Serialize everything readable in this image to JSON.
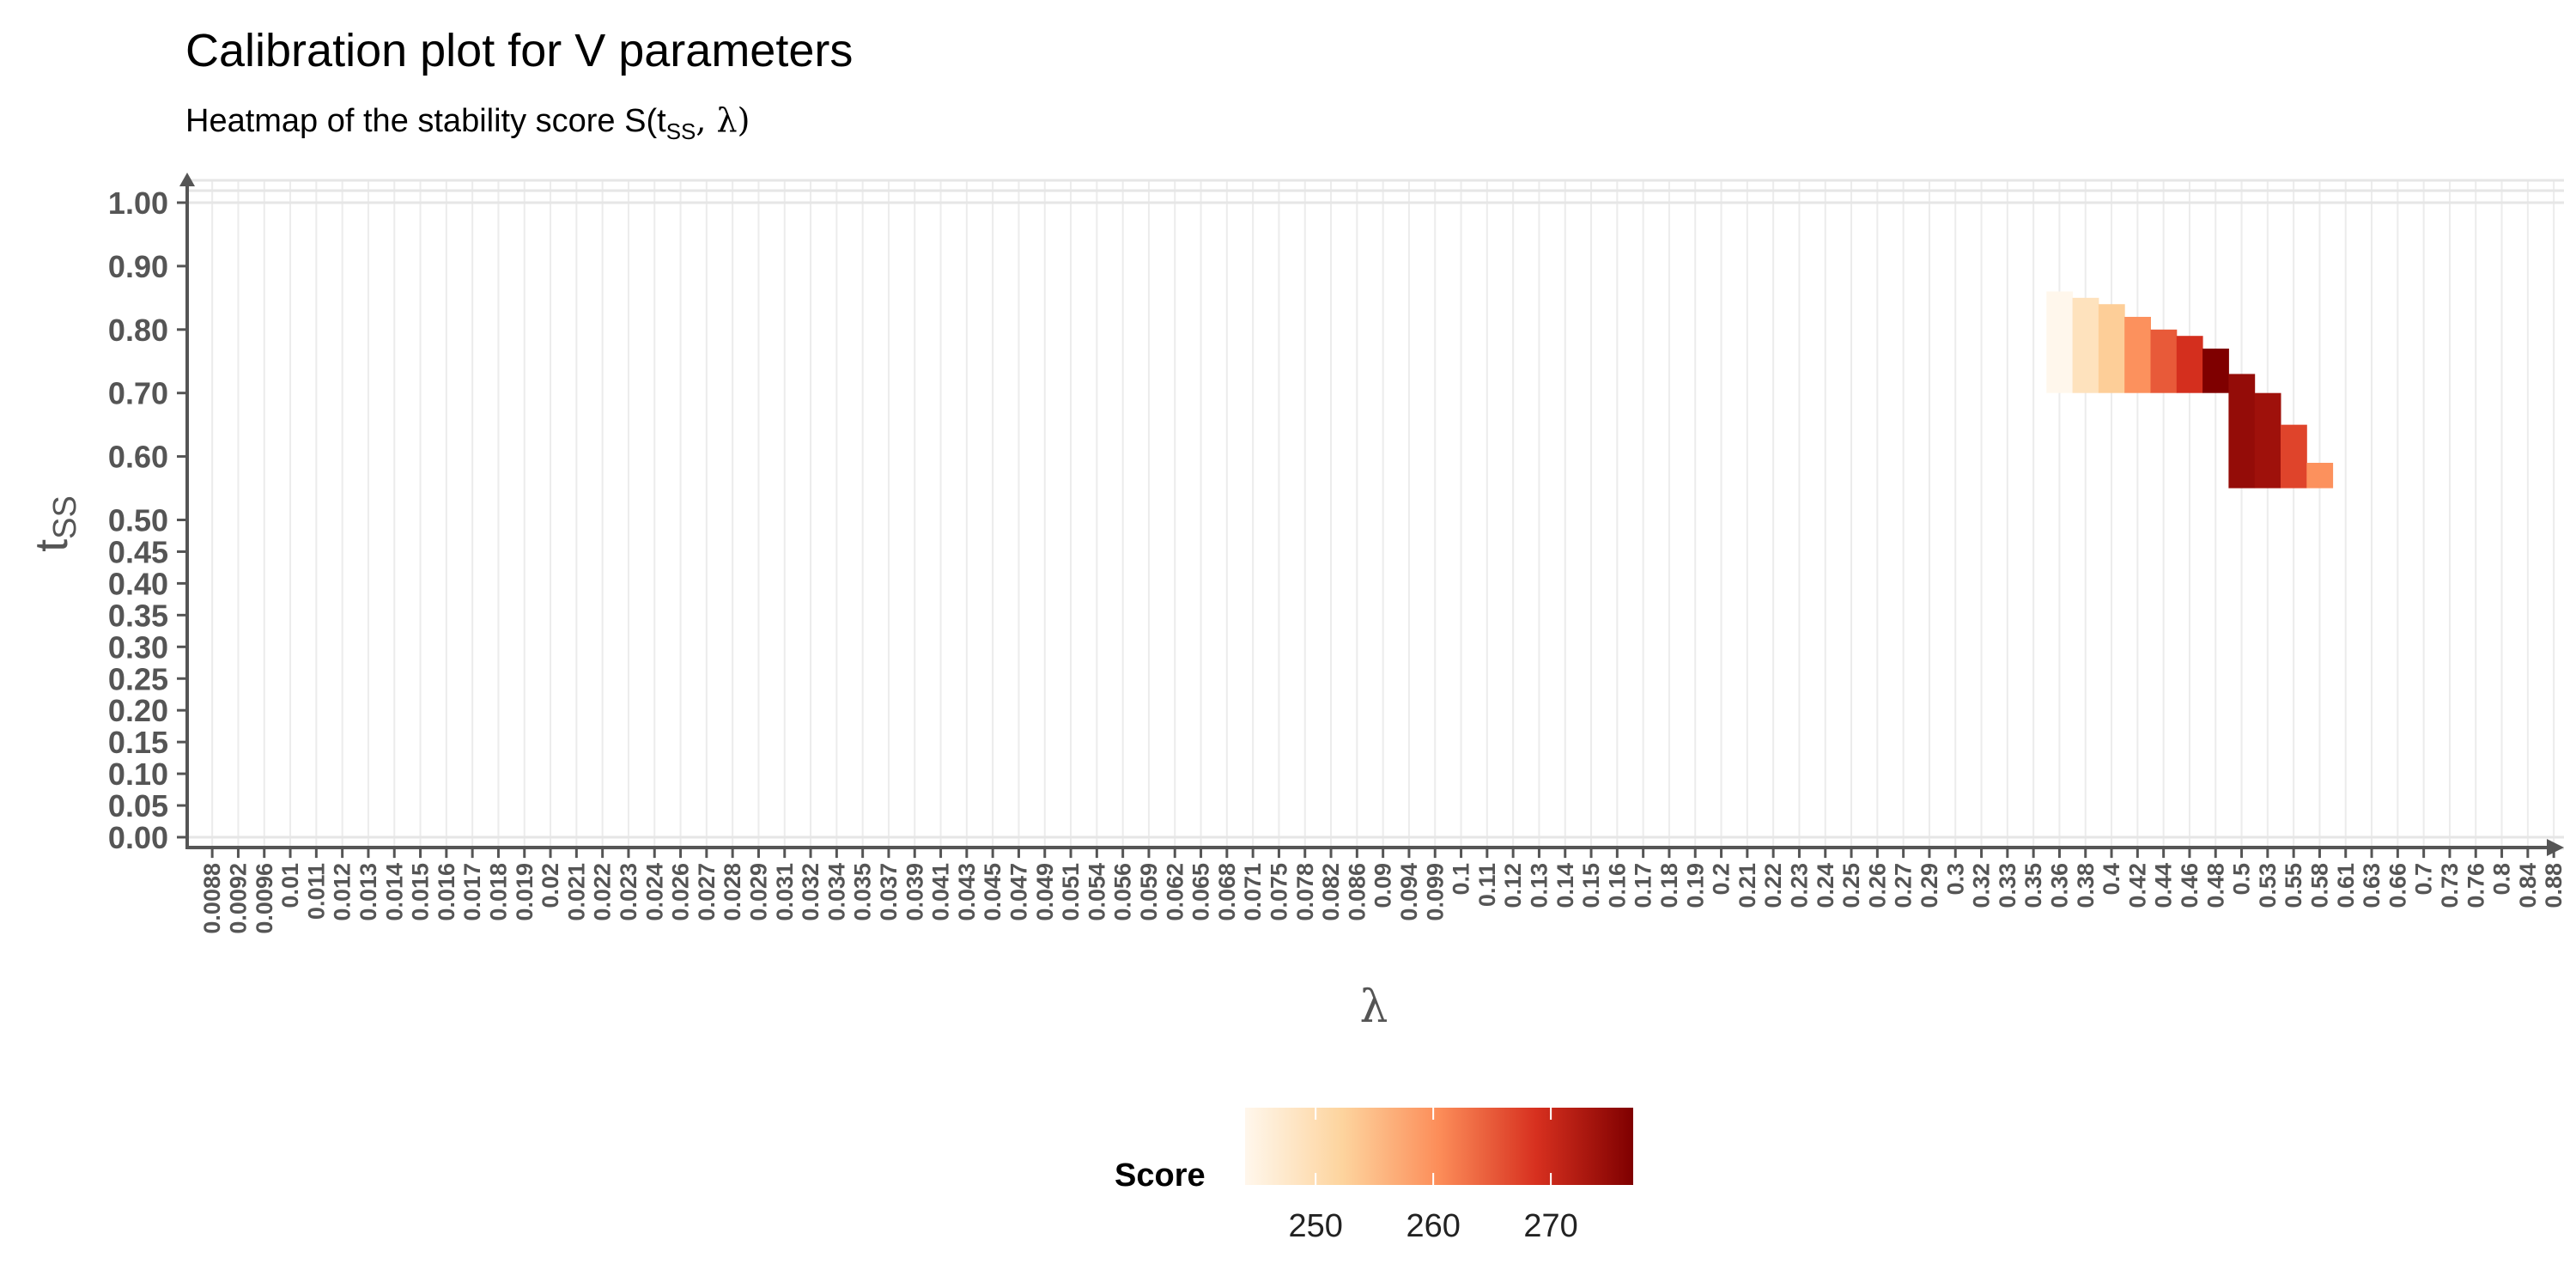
{
  "title": "Calibration plot for V parameters",
  "subtitle": {
    "prefix": "Heatmap of the stability score S(t",
    "sub": "SS",
    "suffix": ", λ)"
  },
  "chart_data": {
    "type": "heatmap",
    "xlabel": "λ",
    "ylabel": {
      "main": "t",
      "sub": "SS"
    },
    "x_categories": [
      "0.0088",
      "0.0092",
      "0.0096",
      "0.01",
      "0.011",
      "0.012",
      "0.013",
      "0.014",
      "0.015",
      "0.016",
      "0.017",
      "0.018",
      "0.019",
      "0.02",
      "0.021",
      "0.022",
      "0.023",
      "0.024",
      "0.026",
      "0.027",
      "0.028",
      "0.029",
      "0.031",
      "0.032",
      "0.034",
      "0.035",
      "0.037",
      "0.039",
      "0.041",
      "0.043",
      "0.045",
      "0.047",
      "0.049",
      "0.051",
      "0.054",
      "0.056",
      "0.059",
      "0.062",
      "0.065",
      "0.068",
      "0.071",
      "0.075",
      "0.078",
      "0.082",
      "0.086",
      "0.09",
      "0.094",
      "0.099",
      "0.1",
      "0.11",
      "0.12",
      "0.13",
      "0.14",
      "0.15",
      "0.16",
      "0.17",
      "0.18",
      "0.19",
      "0.2",
      "0.21",
      "0.22",
      "0.23",
      "0.24",
      "0.25",
      "0.26",
      "0.27",
      "0.29",
      "0.3",
      "0.32",
      "0.33",
      "0.35",
      "0.36",
      "0.38",
      "0.4",
      "0.42",
      "0.44",
      "0.46",
      "0.48",
      "0.5",
      "0.53",
      "0.55",
      "0.58",
      "0.61",
      "0.63",
      "0.66",
      "0.7",
      "0.73",
      "0.76",
      "0.8",
      "0.84",
      "0.88"
    ],
    "y_ticks": [
      "0.00",
      "0.05",
      "0.10",
      "0.15",
      "0.20",
      "0.25",
      "0.30",
      "0.35",
      "0.40",
      "0.45",
      "0.50",
      "0.60",
      "0.70",
      "0.80",
      "0.90",
      "1.00"
    ],
    "ylim": [
      0,
      1
    ],
    "cells": [
      {
        "x": "0.36",
        "y_from": 0.7,
        "y_to": 0.86,
        "score": 244
      },
      {
        "x": "0.38",
        "y_from": 0.7,
        "y_to": 0.85,
        "score": 249
      },
      {
        "x": "0.4",
        "y_from": 0.7,
        "y_to": 0.84,
        "score": 253
      },
      {
        "x": "0.42",
        "y_from": 0.7,
        "y_to": 0.82,
        "score": 260
      },
      {
        "x": "0.44",
        "y_from": 0.7,
        "y_to": 0.8,
        "score": 265
      },
      {
        "x": "0.46",
        "y_from": 0.7,
        "y_to": 0.79,
        "score": 269
      },
      {
        "x": "0.48",
        "y_from": 0.7,
        "y_to": 0.77,
        "score": 277
      },
      {
        "x": "0.5",
        "y_from": 0.55,
        "y_to": 0.73,
        "score": 275
      },
      {
        "x": "0.53",
        "y_from": 0.55,
        "y_to": 0.7,
        "score": 274
      },
      {
        "x": "0.55",
        "y_from": 0.55,
        "y_to": 0.65,
        "score": 267
      },
      {
        "x": "0.58",
        "y_from": 0.55,
        "y_to": 0.59,
        "score": 260
      }
    ],
    "colorscale": {
      "title": "Score",
      "min": 244,
      "max": 277,
      "ticks": [
        250,
        260,
        270
      ],
      "colors": [
        "#FFF7EC",
        "#FDD49E",
        "#FC8D59",
        "#D7301F",
        "#7F0000"
      ]
    }
  }
}
